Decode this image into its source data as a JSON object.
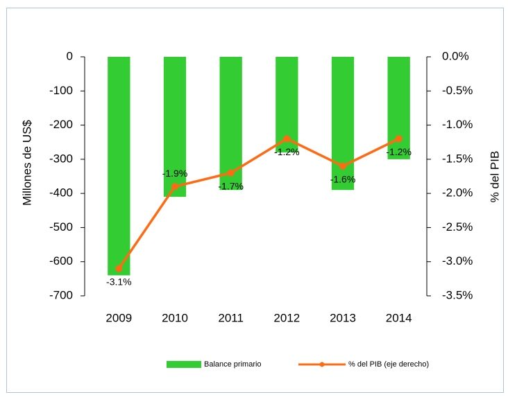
{
  "chart_data": {
    "type": "bar",
    "categories": [
      "2009",
      "2010",
      "2011",
      "2012",
      "2013",
      "2014"
    ],
    "series": [
      {
        "name": "Balance primario",
        "type": "bar",
        "color": "#33cc33",
        "values": [
          -640,
          -410,
          -390,
          -280,
          -390,
          -300
        ]
      },
      {
        "name": "% del PIB (eje derecho)",
        "type": "line",
        "axis": "y2",
        "color": "#ff6a13",
        "values": [
          -3.1,
          -1.9,
          -1.7,
          -1.2,
          -1.6,
          -1.2
        ],
        "value_labels": [
          "-3.1%",
          "-1.9%",
          "-1.7%",
          "-1.2%",
          "-1.6%",
          "-1.2%"
        ]
      }
    ],
    "ylabel": "Millones de US$",
    "y2label": "% del PIB",
    "ylim": [
      -700,
      0
    ],
    "yticks": [
      0,
      -100,
      -200,
      -300,
      -400,
      -500,
      -600,
      -700
    ],
    "y2lim": [
      -3.5,
      0
    ],
    "y2ticks": [
      {
        "value": 0,
        "label": "0.0%"
      },
      {
        "value": -0.5,
        "label": "-0.5%"
      },
      {
        "value": -1,
        "label": "-1.0%"
      },
      {
        "value": -1.5,
        "label": "-1.5%"
      },
      {
        "value": -2,
        "label": "-2.0%"
      },
      {
        "value": -2.5,
        "label": "-2.5%"
      },
      {
        "value": -3,
        "label": "-3.0%"
      },
      {
        "value": -3.5,
        "label": "-3.5%"
      }
    ],
    "legend": "bottom"
  }
}
